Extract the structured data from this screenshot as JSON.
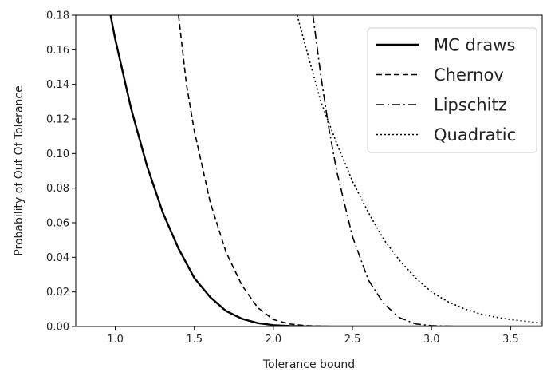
{
  "chart_data": {
    "type": "line",
    "title": "",
    "xlabel": "Tolerance bound",
    "ylabel": "Probability of Out Of Tolerance",
    "xlim": [
      0.75,
      3.7
    ],
    "ylim": [
      0,
      0.18
    ],
    "xticks": [
      1.0,
      1.5,
      2.0,
      2.5,
      3.0,
      3.5
    ],
    "xtick_labels": [
      "1.0",
      "1.5",
      "2.0",
      "2.5",
      "3.0",
      "3.5"
    ],
    "yticks": [
      0,
      0.02,
      0.04,
      0.06,
      0.08,
      0.1,
      0.12,
      0.14,
      0.16,
      0.18
    ],
    "ytick_labels": [
      "0.00",
      "0.02",
      "0.04",
      "0.06",
      "0.08",
      "0.10",
      "0.12",
      "0.14",
      "0.16",
      "0.18"
    ],
    "grid": false,
    "legend_position": "top-right",
    "color": "#000000",
    "series": [
      {
        "name": "MC draws",
        "style": "solid",
        "x": [
          0.97,
          1.0,
          1.1,
          1.2,
          1.3,
          1.4,
          1.5,
          1.6,
          1.7,
          1.8,
          1.9,
          2.0,
          2.1,
          2.2,
          2.4,
          2.6,
          3.0,
          3.7
        ],
        "y": [
          0.18,
          0.166,
          0.126,
          0.093,
          0.066,
          0.045,
          0.028,
          0.017,
          0.009,
          0.0045,
          0.002,
          0.0008,
          0.0003,
          0.0001,
          0.0,
          0.0,
          0.0,
          0.0
        ]
      },
      {
        "name": "Chernov",
        "style": "dashed",
        "x": [
          1.4,
          1.45,
          1.5,
          1.6,
          1.7,
          1.8,
          1.9,
          2.0,
          2.1,
          2.2,
          2.4,
          2.6,
          3.0,
          3.7
        ],
        "y": [
          0.18,
          0.14,
          0.113,
          0.072,
          0.043,
          0.024,
          0.011,
          0.004,
          0.0015,
          0.0005,
          0.0,
          0.0,
          0.0,
          0.0
        ]
      },
      {
        "name": "Lipschitz",
        "style": "dashdot",
        "x": [
          2.25,
          2.3,
          2.35,
          2.4,
          2.5,
          2.6,
          2.7,
          2.8,
          2.9,
          3.0,
          3.1,
          3.2,
          3.4,
          3.7
        ],
        "y": [
          0.18,
          0.145,
          0.115,
          0.09,
          0.052,
          0.027,
          0.013,
          0.005,
          0.0015,
          0.0005,
          0.0002,
          0.0,
          0.0,
          0.0
        ]
      },
      {
        "name": "Quadratic",
        "style": "dotted",
        "x": [
          2.15,
          2.2,
          2.3,
          2.4,
          2.5,
          2.6,
          2.7,
          2.8,
          2.9,
          3.0,
          3.1,
          3.2,
          3.3,
          3.4,
          3.5,
          3.6,
          3.7
        ],
        "y": [
          0.18,
          0.163,
          0.13,
          0.106,
          0.084,
          0.066,
          0.05,
          0.038,
          0.028,
          0.02,
          0.0145,
          0.0105,
          0.0075,
          0.0055,
          0.004,
          0.003,
          0.002
        ]
      }
    ]
  }
}
